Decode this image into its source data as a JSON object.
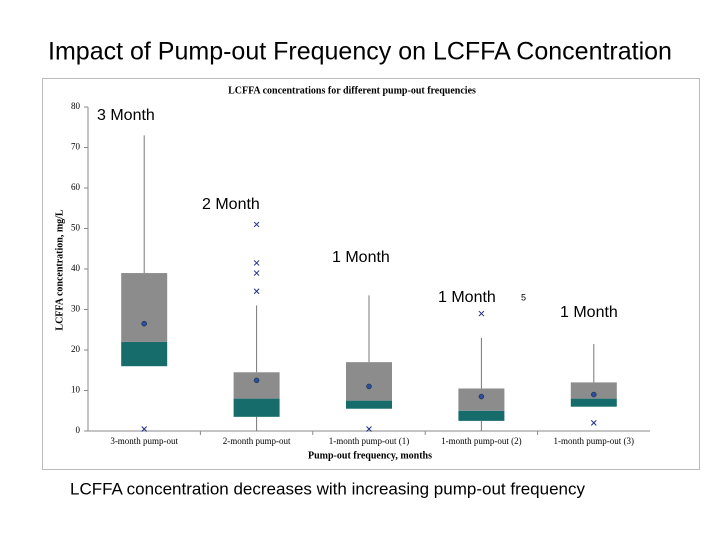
{
  "slide": {
    "title": "Impact of Pump-out Frequency on LCFFA Concentration",
    "caption": "LCFFA concentration decreases with increasing pump-out frequency"
  },
  "chart_data": {
    "type": "box",
    "title": "LCFFA concentrations for different pump-out frequencies",
    "x_label": "Pump-out frequency, months",
    "y_label": "LCFFA concentration, mg/L",
    "categories": [
      "3-month pump-out",
      "2-month pump-out",
      "1-month pump-out (1)",
      "1-month pump-out (2)",
      "1-month pump-out (3)"
    ],
    "boxes": [
      {
        "min": 16,
        "q1": 16,
        "median": 22,
        "q3": 39,
        "max": 73,
        "mean": 26.5,
        "outliers": [
          0.5
        ]
      },
      {
        "min": 0,
        "q1": 3.5,
        "median": 8,
        "q3": 14.5,
        "max": 31,
        "mean": 12.5,
        "outliers": [
          34.5,
          39,
          41.5,
          51
        ]
      },
      {
        "min": 5.5,
        "q1": 5.5,
        "median": 7.5,
        "q3": 17,
        "max": 33.5,
        "mean": 11,
        "outliers": [
          0.5
        ]
      },
      {
        "min": 0,
        "q1": 2.5,
        "median": 5,
        "q3": 10.5,
        "max": 23,
        "mean": 8.5,
        "outliers": [
          29
        ]
      },
      {
        "min": 6,
        "q1": 6,
        "median": 8,
        "q3": 12,
        "max": 21.5,
        "mean": 9,
        "outliers": [
          2
        ]
      }
    ],
    "lower_color": "#166b6b",
    "upper_color": "#8c8c8c",
    "mean_color": "#2b4f9e",
    "outlier_color": "#1f2f8a",
    "annotations": [
      "3 Month",
      "2 Month",
      "1 Month",
      "1 Month",
      "1 Month",
      "5"
    ],
    "ylim": [
      0,
      80
    ],
    "yticks": [
      0,
      10,
      20,
      30,
      40,
      50,
      60,
      70,
      80
    ],
    "grid": false
  }
}
